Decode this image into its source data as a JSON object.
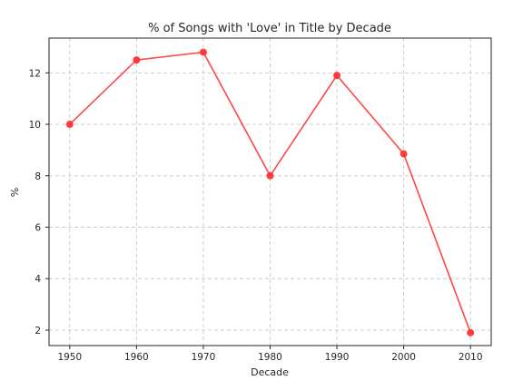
{
  "chart_data": {
    "type": "line",
    "title": "% of Songs with 'Love' in Title by Decade",
    "xlabel": "Decade",
    "ylabel": "%",
    "x": [
      1950,
      1960,
      1970,
      1980,
      1990,
      2000,
      2010
    ],
    "series": [
      {
        "values": [
          10.0,
          12.5,
          12.8,
          8.0,
          11.9,
          8.85,
          1.9
        ],
        "color": "#ff3333"
      }
    ],
    "xlim": [
      1946.9,
      2013.1
    ],
    "ylim": [
      1.4,
      13.35
    ],
    "xticks": [
      1950,
      1960,
      1970,
      1980,
      1990,
      2000,
      2010
    ],
    "yticks": [
      2,
      4,
      6,
      8,
      10,
      12
    ],
    "grid": true,
    "grid_style": "dashed",
    "marker": "circle"
  }
}
